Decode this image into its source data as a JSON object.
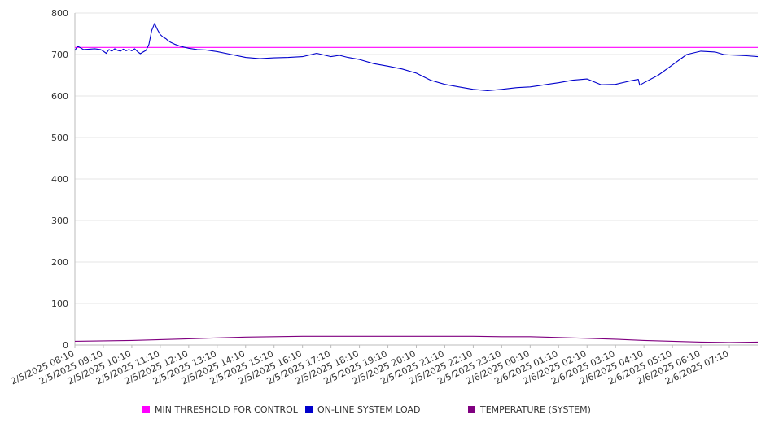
{
  "chart_data": {
    "type": "line",
    "ylim": [
      0,
      800
    ],
    "y_ticks": [
      0,
      100,
      200,
      300,
      400,
      500,
      600,
      700,
      800
    ],
    "x_tick_labels": [
      "2/5/2025 08:10",
      "2/5/2025 09:10",
      "2/5/2025 10:10",
      "2/5/2025 11:10",
      "2/5/2025 12:10",
      "2/5/2025 13:10",
      "2/5/2025 14:10",
      "2/5/2025 15:10",
      "2/5/2025 16:10",
      "2/5/2025 17:10",
      "2/5/2025 18:10",
      "2/5/2025 19:10",
      "2/5/2025 20:10",
      "2/5/2025 21:10",
      "2/5/2025 22:10",
      "2/5/2025 23:10",
      "2/6/2025 00:10",
      "2/6/2025 01:10",
      "2/6/2025 02:10",
      "2/6/2025 03:10",
      "2/6/2025 04:10",
      "2/6/2025 05:10",
      "2/6/2025 06:10",
      "2/6/2025 07:10"
    ],
    "x_range_hours": [
      0,
      24
    ],
    "grid": "horizontal",
    "legend_position": "bottom",
    "series": [
      {
        "name": "MIN THRESHOLD FOR CONTROL",
        "color": "#ff00ff",
        "x": [
          0,
          24
        ],
        "values": [
          717,
          717
        ]
      },
      {
        "name": "ON-LINE SYSTEM LOAD",
        "color": "#0000cc",
        "x": [
          0,
          0.1,
          0.3,
          0.5,
          0.7,
          0.9,
          1.0,
          1.1,
          1.2,
          1.3,
          1.4,
          1.5,
          1.6,
          1.7,
          1.8,
          1.9,
          2.0,
          2.1,
          2.2,
          2.3,
          2.4,
          2.5,
          2.6,
          2.7,
          2.8,
          2.9,
          3.0,
          3.1,
          3.2,
          3.25,
          3.35,
          3.5,
          3.7,
          4.0,
          4.3,
          4.6,
          5.0,
          5.5,
          6.0,
          6.5,
          7.0,
          7.5,
          8.0,
          8.5,
          9.0,
          9.3,
          9.6,
          10.0,
          10.5,
          11.0,
          11.5,
          12.0,
          12.5,
          13.0,
          13.5,
          14.0,
          14.5,
          15.0,
          15.5,
          16.0,
          16.3,
          16.6,
          17.0,
          17.5,
          18.0,
          18.5,
          19.0,
          19.5,
          19.8,
          19.85,
          20.0,
          20.5,
          21.0,
          21.5,
          22.0,
          22.5,
          22.8,
          23.0,
          23.3,
          23.6,
          24.0
        ],
        "values": [
          710,
          720,
          712,
          713,
          714,
          712,
          708,
          703,
          712,
          708,
          714,
          710,
          708,
          713,
          709,
          712,
          709,
          714,
          707,
          702,
          706,
          710,
          724,
          758,
          775,
          760,
          748,
          742,
          738,
          735,
          730,
          725,
          720,
          715,
          712,
          711,
          707,
          700,
          693,
          690,
          692,
          693,
          695,
          703,
          695,
          698,
          693,
          688,
          678,
          672,
          665,
          655,
          638,
          628,
          622,
          616,
          613,
          616,
          620,
          622,
          625,
          628,
          632,
          638,
          641,
          627,
          628,
          636,
          640,
          626,
          632,
          650,
          675,
          700,
          708,
          706,
          700,
          699,
          698,
          697,
          695
        ]
      },
      {
        "name": "TEMPERATURE (SYSTEM)",
        "color": "#800080",
        "x": [
          0,
          1,
          2,
          3,
          4,
          5,
          6,
          7,
          8,
          9,
          10,
          11,
          12,
          13,
          14,
          15,
          16,
          17,
          18,
          19,
          20,
          21,
          22,
          23,
          24
        ],
        "values": [
          9,
          10,
          11,
          13,
          15,
          17,
          19,
          20,
          21,
          21,
          21,
          21,
          21,
          21,
          21,
          20,
          20,
          18,
          16,
          14,
          11,
          9,
          7,
          6,
          7
        ]
      }
    ]
  }
}
